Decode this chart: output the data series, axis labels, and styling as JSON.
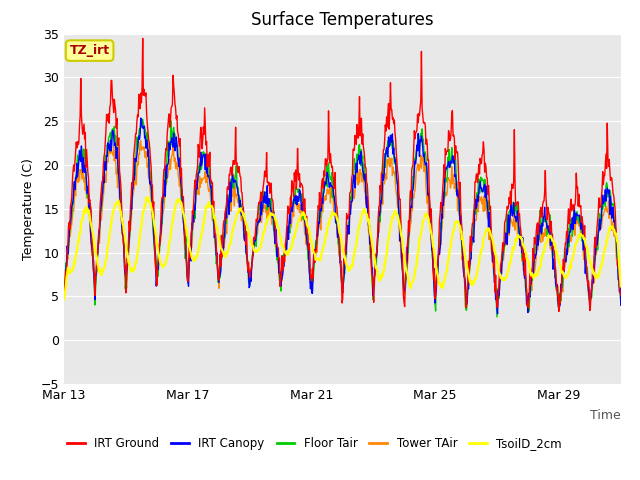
{
  "title": "Surface Temperatures",
  "xlabel": "Time",
  "ylabel": "Temperature (C)",
  "ylim": [
    -5,
    35
  ],
  "yticks": [
    -5,
    0,
    5,
    10,
    15,
    20,
    25,
    30,
    35
  ],
  "xtick_labels": [
    "Mar 13",
    "Mar 17",
    "Mar 21",
    "Mar 25",
    "Mar 29"
  ],
  "xtick_positions": [
    0,
    4,
    8,
    12,
    16
  ],
  "bg_color": "#e8e8e8",
  "fig_color": "#ffffff",
  "series_colors": {
    "IRT Ground": "#ff0000",
    "IRT Canopy": "#0000ff",
    "Floor Tair": "#00cc00",
    "Tower TAir": "#ff8800",
    "TsoilD_2cm": "#ffff00"
  },
  "legend_entries": [
    "IRT Ground",
    "IRT Canopy",
    "Floor Tair",
    "Tower TAir",
    "TsoilD_2cm"
  ],
  "annotation_text": "TZ_irt",
  "annotation_color": "#aa0000",
  "annotation_bg": "#ffff99",
  "annotation_border": "#cccc00",
  "n_days": 18,
  "pts_per_day": 48
}
